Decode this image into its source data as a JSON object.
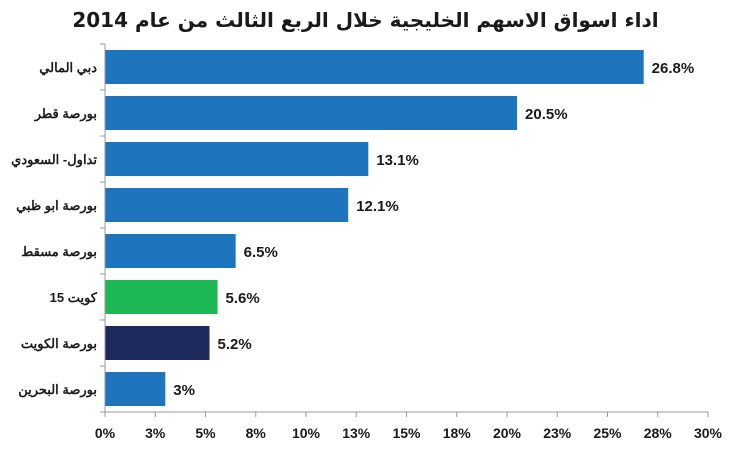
{
  "chart_data": {
    "type": "bar",
    "orientation": "horizontal",
    "title": "اداء اسواق الاسهم الخليجية خلال الربع الثالث من عام 2014",
    "categories": [
      "دبي المالي",
      "بورصة قطر",
      "تداول- السعودي",
      "بورصة ابو ظبي",
      "بورصة مسقط",
      "كويت 15",
      "بورصة الكويت",
      "بورصة البحرين"
    ],
    "values": [
      26.8,
      20.5,
      13.1,
      12.1,
      6.5,
      5.6,
      5.2,
      3.0
    ],
    "data_labels": [
      "26.8%",
      "20.5%",
      "13.1%",
      "12.1%",
      "6.5%",
      "5.6%",
      "5.2%",
      "3%"
    ],
    "bar_colors": [
      "#1f74be",
      "#1f74be",
      "#1f74be",
      "#1f74be",
      "#1f74be",
      "#1db954",
      "#1f2a5c",
      "#1f74be"
    ],
    "xlim": [
      0,
      30
    ],
    "x_ticks": [
      0,
      2.5,
      5,
      7.5,
      10,
      12.5,
      15,
      17.5,
      20,
      22.5,
      25,
      27.5,
      30
    ],
    "x_tick_labels": [
      "0%",
      "3%",
      "5%",
      "8%",
      "10%",
      "13%",
      "15%",
      "18%",
      "20%",
      "23%",
      "25%",
      "28%",
      "30%"
    ],
    "xlabel": "",
    "ylabel": "",
    "grid": false,
    "legend": "none"
  }
}
